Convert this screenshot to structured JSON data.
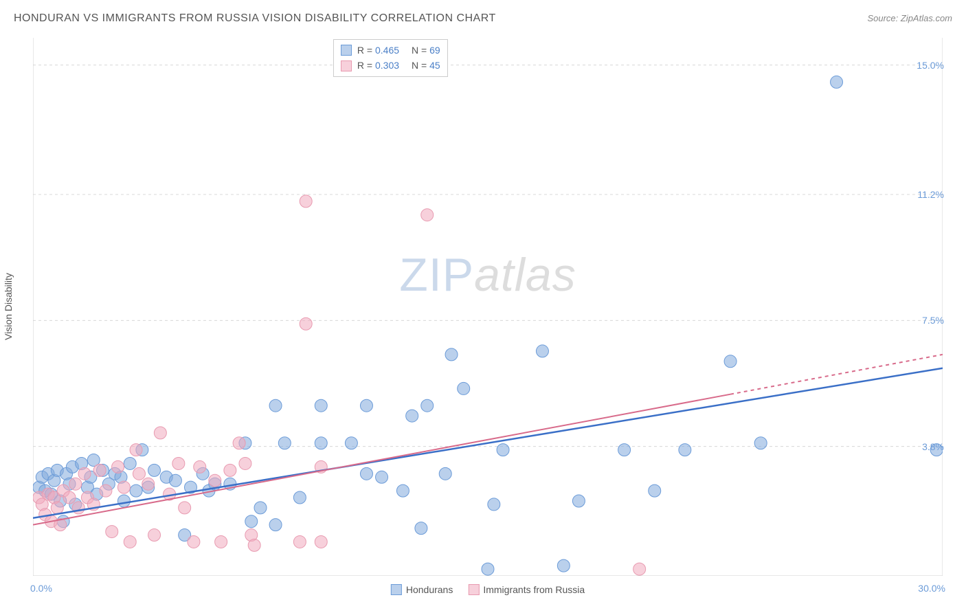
{
  "header": {
    "title": "HONDURAN VS IMMIGRANTS FROM RUSSIA VISION DISABILITY CORRELATION CHART",
    "source": "Source: ZipAtlas.com"
  },
  "chart": {
    "type": "scatter",
    "ylabel": "Vision Disability",
    "xlim": [
      0,
      30
    ],
    "ylim": [
      0,
      15.8
    ],
    "x_ticks_minor": [
      0,
      3.75,
      7.5,
      11.25,
      15,
      18.75,
      22.5,
      26.25,
      30
    ],
    "x_tick_labels": [
      {
        "pos": 0,
        "label": "0.0%"
      },
      {
        "pos": 30,
        "label": "30.0%"
      }
    ],
    "y_grid": [
      3.8,
      7.5,
      11.2,
      15.0
    ],
    "y_tick_labels": [
      {
        "pos": 3.8,
        "label": "3.8%"
      },
      {
        "pos": 7.5,
        "label": "7.5%"
      },
      {
        "pos": 11.2,
        "label": "11.2%"
      },
      {
        "pos": 15.0,
        "label": "15.0%"
      }
    ],
    "grid_color": "#d8d8d8",
    "axis_color": "#d0d0d0",
    "background_color": "#ffffff",
    "watermark": {
      "part1": "ZIP",
      "part2": "atlas"
    },
    "series": [
      {
        "name": "Hondurans",
        "color_fill": "rgba(130,170,220,0.55)",
        "color_stroke": "#6b9bd8",
        "marker_radius": 9,
        "trend": {
          "x1": 0,
          "y1": 1.7,
          "x2": 30,
          "y2": 6.1,
          "color": "#3a6fc7",
          "width": 2.5,
          "dash_after_x": null
        },
        "r": "0.465",
        "n": "69",
        "points": [
          [
            0.2,
            2.6
          ],
          [
            0.3,
            2.9
          ],
          [
            0.4,
            2.5
          ],
          [
            0.5,
            3.0
          ],
          [
            0.6,
            2.4
          ],
          [
            0.7,
            2.8
          ],
          [
            0.8,
            3.1
          ],
          [
            0.9,
            2.2
          ],
          [
            1.0,
            1.6
          ],
          [
            1.1,
            3.0
          ],
          [
            1.2,
            2.7
          ],
          [
            1.3,
            3.2
          ],
          [
            1.4,
            2.1
          ],
          [
            1.6,
            3.3
          ],
          [
            1.8,
            2.6
          ],
          [
            1.9,
            2.9
          ],
          [
            2.0,
            3.4
          ],
          [
            2.1,
            2.4
          ],
          [
            2.3,
            3.1
          ],
          [
            2.5,
            2.7
          ],
          [
            2.7,
            3.0
          ],
          [
            2.9,
            2.9
          ],
          [
            3.0,
            2.2
          ],
          [
            3.2,
            3.3
          ],
          [
            3.4,
            2.5
          ],
          [
            3.6,
            3.7
          ],
          [
            3.8,
            2.6
          ],
          [
            4.0,
            3.1
          ],
          [
            4.4,
            2.9
          ],
          [
            4.7,
            2.8
          ],
          [
            5.0,
            1.2
          ],
          [
            5.2,
            2.6
          ],
          [
            5.6,
            3.0
          ],
          [
            5.8,
            2.5
          ],
          [
            6.0,
            2.7
          ],
          [
            6.5,
            2.7
          ],
          [
            7.0,
            3.9
          ],
          [
            7.2,
            1.6
          ],
          [
            7.5,
            2.0
          ],
          [
            8.0,
            5.0
          ],
          [
            8.0,
            1.5
          ],
          [
            8.3,
            3.9
          ],
          [
            8.8,
            2.3
          ],
          [
            9.5,
            5.0
          ],
          [
            9.5,
            3.9
          ],
          [
            10.5,
            3.9
          ],
          [
            11.0,
            5.0
          ],
          [
            11.0,
            3.0
          ],
          [
            11.5,
            2.9
          ],
          [
            12.2,
            2.5
          ],
          [
            12.5,
            4.7
          ],
          [
            12.8,
            1.4
          ],
          [
            13.0,
            5.0
          ],
          [
            13.6,
            3.0
          ],
          [
            13.8,
            6.5
          ],
          [
            14.2,
            5.5
          ],
          [
            15.0,
            0.2
          ],
          [
            15.2,
            2.1
          ],
          [
            15.5,
            3.7
          ],
          [
            16.8,
            6.6
          ],
          [
            17.5,
            0.3
          ],
          [
            18.0,
            2.2
          ],
          [
            19.5,
            3.7
          ],
          [
            20.5,
            2.5
          ],
          [
            21.5,
            3.7
          ],
          [
            23.0,
            6.3
          ],
          [
            24.0,
            3.9
          ],
          [
            26.5,
            14.5
          ],
          [
            29.8,
            3.7
          ]
        ]
      },
      {
        "name": "Immigrants from Russia",
        "color_fill": "rgba(240,170,190,0.55)",
        "color_stroke": "#e89ab0",
        "marker_radius": 9,
        "trend": {
          "x1": 0,
          "y1": 1.5,
          "x2": 30,
          "y2": 6.5,
          "color": "#d86a8a",
          "width": 2,
          "dash_after_x": 23
        },
        "r": "0.303",
        "n": "45",
        "points": [
          [
            0.2,
            2.3
          ],
          [
            0.3,
            2.1
          ],
          [
            0.4,
            1.8
          ],
          [
            0.5,
            2.4
          ],
          [
            0.6,
            1.6
          ],
          [
            0.7,
            2.3
          ],
          [
            0.8,
            2.0
          ],
          [
            0.9,
            1.5
          ],
          [
            1.0,
            2.5
          ],
          [
            1.2,
            2.3
          ],
          [
            1.4,
            2.7
          ],
          [
            1.5,
            2.0
          ],
          [
            1.7,
            3.0
          ],
          [
            1.8,
            2.3
          ],
          [
            2.0,
            2.1
          ],
          [
            2.2,
            3.1
          ],
          [
            2.4,
            2.5
          ],
          [
            2.6,
            1.3
          ],
          [
            2.8,
            3.2
          ],
          [
            3.0,
            2.6
          ],
          [
            3.2,
            1.0
          ],
          [
            3.4,
            3.7
          ],
          [
            3.5,
            3.0
          ],
          [
            3.8,
            2.7
          ],
          [
            4.0,
            1.2
          ],
          [
            4.2,
            4.2
          ],
          [
            4.5,
            2.4
          ],
          [
            4.8,
            3.3
          ],
          [
            5.0,
            2.0
          ],
          [
            5.3,
            1.0
          ],
          [
            5.5,
            3.2
          ],
          [
            6.0,
            2.8
          ],
          [
            6.2,
            1.0
          ],
          [
            6.5,
            3.1
          ],
          [
            6.8,
            3.9
          ],
          [
            7.0,
            3.3
          ],
          [
            7.2,
            1.2
          ],
          [
            7.3,
            0.9
          ],
          [
            8.8,
            1.0
          ],
          [
            9.0,
            11.0
          ],
          [
            9.0,
            7.4
          ],
          [
            9.5,
            1.0
          ],
          [
            9.5,
            3.2
          ],
          [
            13.0,
            10.6
          ],
          [
            20.0,
            0.2
          ]
        ]
      }
    ],
    "legend_top": {
      "items": [
        {
          "swatch_fill": "rgba(130,170,220,0.55)",
          "swatch_stroke": "#6b9bd8",
          "r": "0.465",
          "n": "69"
        },
        {
          "swatch_fill": "rgba(240,170,190,0.55)",
          "swatch_stroke": "#e89ab0",
          "r": "0.303",
          "n": "45"
        }
      ]
    },
    "legend_bottom": {
      "items": [
        {
          "swatch_fill": "rgba(130,170,220,0.55)",
          "swatch_stroke": "#6b9bd8",
          "label": "Hondurans"
        },
        {
          "swatch_fill": "rgba(240,170,190,0.55)",
          "swatch_stroke": "#e89ab0",
          "label": "Immigrants from Russia"
        }
      ]
    }
  }
}
